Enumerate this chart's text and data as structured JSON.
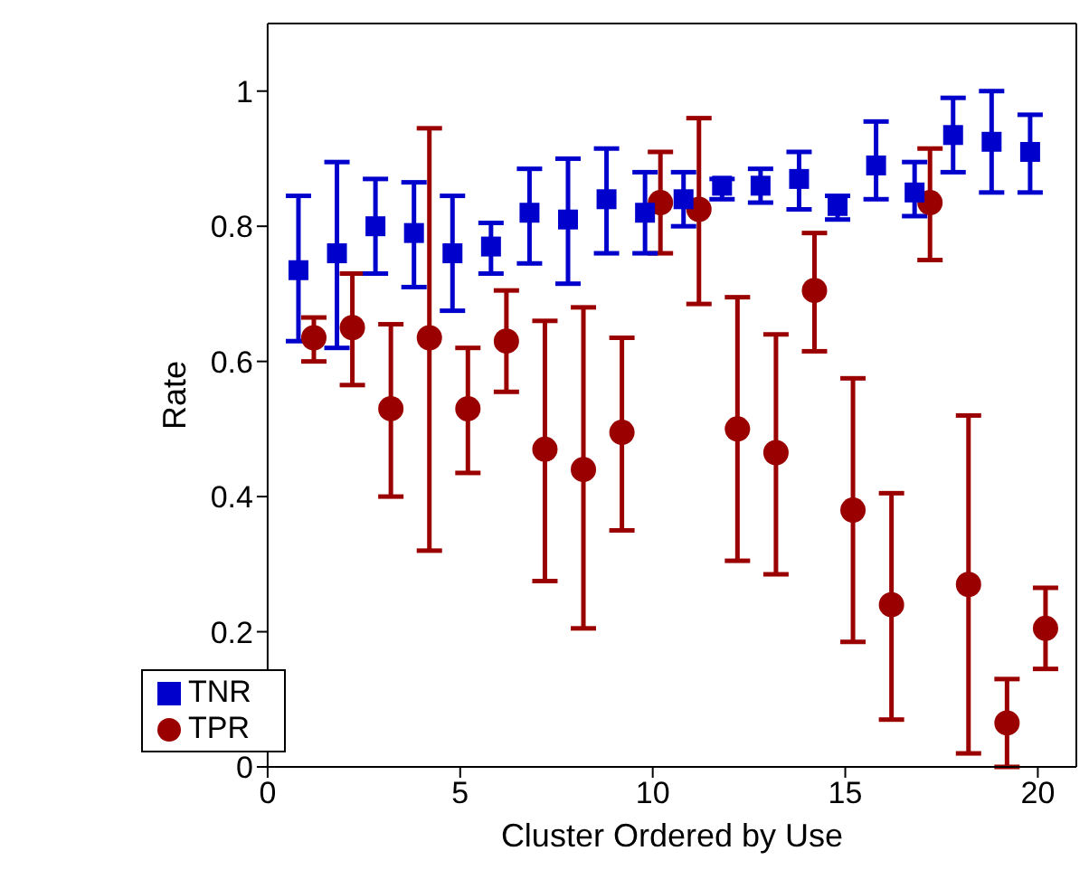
{
  "chart_data": {
    "type": "scatter",
    "xlabel": "Cluster Ordered by Use",
    "ylabel": "Rate",
    "xlim": [
      0,
      21
    ],
    "ylim": [
      0,
      1.1
    ],
    "xticks": [
      0,
      5,
      10,
      15,
      20
    ],
    "yticks": [
      0,
      0.2,
      0.4,
      0.6,
      0.8,
      1
    ],
    "grid": false,
    "legend": "bottom left",
    "series": [
      {
        "name": "TPR",
        "color": "#9b0000",
        "marker": "circle",
        "x": [
          1.2,
          2.2,
          3.2,
          4.2,
          5.2,
          6.2,
          7.2,
          8.2,
          9.2,
          10.2,
          11.2,
          12.2,
          13.2,
          14.2,
          15.2,
          16.2,
          17.2,
          18.2,
          19.2,
          20.2
        ],
        "values": [
          0.635,
          0.65,
          0.53,
          0.635,
          0.53,
          0.63,
          0.47,
          0.44,
          0.495,
          0.835,
          0.825,
          0.5,
          0.465,
          0.705,
          0.38,
          0.24,
          0.835,
          0.27,
          0.065,
          0.205
        ],
        "errors": [
          [
            0.6,
            0.665
          ],
          [
            0.565,
            0.73
          ],
          [
            0.4,
            0.655
          ],
          [
            0.32,
            0.945
          ],
          [
            0.435,
            0.62
          ],
          [
            0.555,
            0.705
          ],
          [
            0.275,
            0.66
          ],
          [
            0.205,
            0.68
          ],
          [
            0.35,
            0.635
          ],
          [
            0.76,
            0.91
          ],
          [
            0.685,
            0.96
          ],
          [
            0.305,
            0.695
          ],
          [
            0.285,
            0.64
          ],
          [
            0.615,
            0.79
          ],
          [
            0.185,
            0.575
          ],
          [
            0.07,
            0.405
          ],
          [
            0.75,
            0.915
          ],
          [
            0.02,
            0.52
          ],
          [
            0,
            0.13
          ],
          [
            0.145,
            0.265
          ]
        ]
      },
      {
        "name": "TNR",
        "color": "#0000cc",
        "marker": "square",
        "x": [
          0.8,
          1.8,
          2.8,
          3.8,
          4.8,
          5.8,
          6.8,
          7.8,
          8.8,
          9.8,
          10.8,
          11.8,
          12.8,
          13.8,
          14.8,
          15.8,
          16.8,
          17.8,
          18.8,
          19.8
        ],
        "values": [
          0.735,
          0.76,
          0.8,
          0.79,
          0.76,
          0.77,
          0.82,
          0.81,
          0.84,
          0.82,
          0.84,
          0.86,
          0.86,
          0.87,
          0.83,
          0.89,
          0.85,
          0.935,
          0.925,
          0.91
        ],
        "errors": [
          [
            0.63,
            0.845
          ],
          [
            0.62,
            0.895
          ],
          [
            0.73,
            0.87
          ],
          [
            0.71,
            0.865
          ],
          [
            0.675,
            0.845
          ],
          [
            0.73,
            0.805
          ],
          [
            0.745,
            0.885
          ],
          [
            0.715,
            0.9
          ],
          [
            0.76,
            0.915
          ],
          [
            0.76,
            0.88
          ],
          [
            0.8,
            0.88
          ],
          [
            0.84,
            0.87
          ],
          [
            0.835,
            0.885
          ],
          [
            0.825,
            0.91
          ],
          [
            0.81,
            0.845
          ],
          [
            0.84,
            0.955
          ],
          [
            0.815,
            0.895
          ],
          [
            0.88,
            0.99
          ],
          [
            0.85,
            1.0
          ],
          [
            0.85,
            0.965
          ]
        ]
      }
    ]
  }
}
